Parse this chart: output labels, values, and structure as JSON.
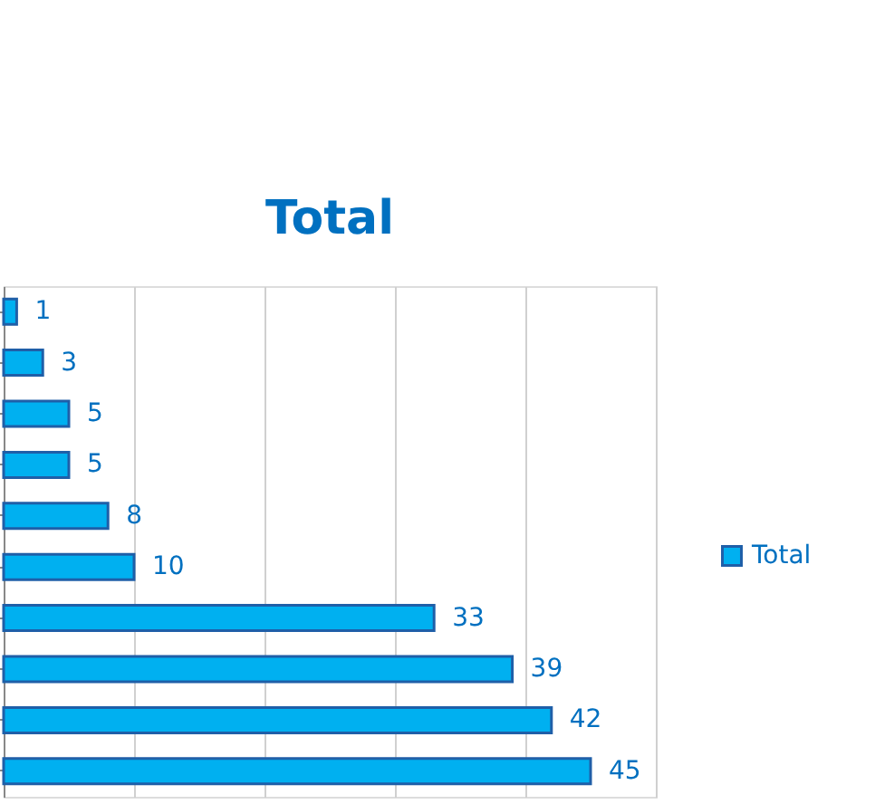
{
  "chart_data": {
    "type": "bar",
    "orientation": "horizontal",
    "title": "Total",
    "categories": [
      null,
      null,
      null,
      null,
      null,
      null,
      null,
      null,
      null,
      null
    ],
    "series": [
      {
        "name": "Total",
        "color": "#00b0f0",
        "values": [
          1,
          3,
          5,
          5,
          8,
          10,
          33,
          39,
          42,
          45
        ]
      }
    ],
    "xlim": [
      0,
      50
    ],
    "xticks": [
      {
        "value": 0,
        "label": null
      },
      {
        "value": 10,
        "label": null
      },
      {
        "value": 20,
        "label": null
      },
      {
        "value": 30,
        "label": null
      },
      {
        "value": 40,
        "label": null
      },
      {
        "value": 50,
        "label": null
      }
    ],
    "tick_labels": false,
    "grid": "x",
    "legend": "right",
    "data_labels": true
  }
}
